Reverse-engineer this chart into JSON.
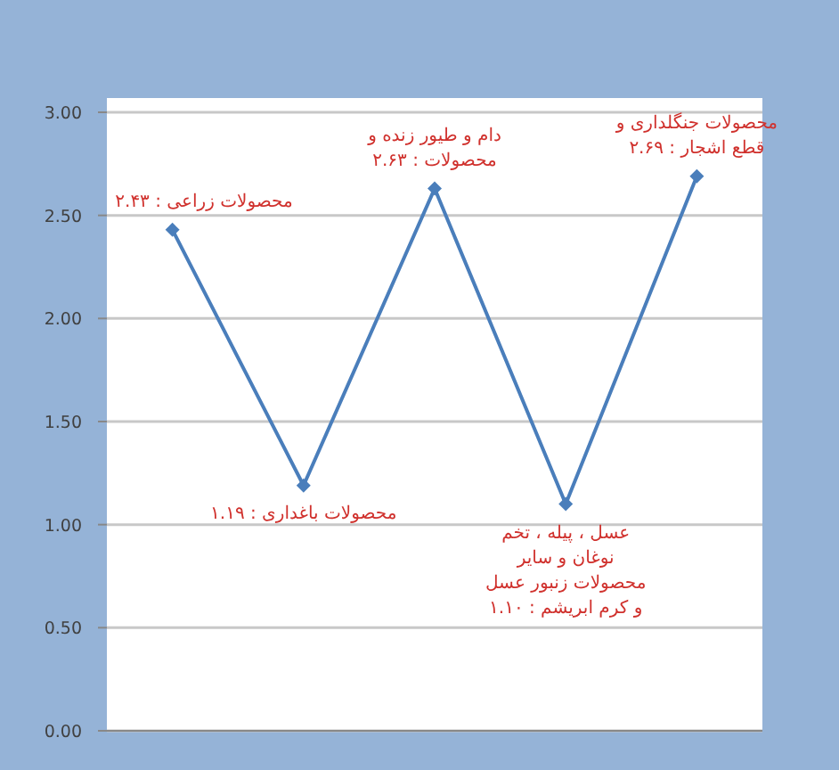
{
  "chart_data": {
    "type": "line",
    "categories": [
      null,
      null,
      null,
      null,
      null
    ],
    "series": [
      {
        "color": "#4a7ebb",
        "values": [
          2.43,
          1.19,
          2.63,
          1.1,
          2.69
        ]
      }
    ],
    "marker": "diamond",
    "ylim": [
      0,
      3
    ],
    "yticks": [
      {
        "value": 0,
        "label": "0.00"
      },
      {
        "value": 0.5,
        "label": "0.50"
      },
      {
        "value": 1,
        "label": "1.00"
      },
      {
        "value": 1.5,
        "label": "1.50"
      },
      {
        "value": 2,
        "label": "2.00"
      },
      {
        "value": 2.5,
        "label": "2.50"
      },
      {
        "value": 3,
        "label": "3.00"
      }
    ],
    "grid": "y",
    "annotations": [
      "محصولات زراعی : ۲.۴۳",
      "محصولات باغداری : ۱.۱۹",
      "دام و طیور زنده و محصولات : ۲.۶۳",
      "عسل ، پیله ، تخم نوغان و سایر محصولات زنبور عسل و کرم ابریشم : ۱.۱۰",
      "محصولات جنگلداری و قطع اشجار : ۲.۶۹"
    ]
  }
}
